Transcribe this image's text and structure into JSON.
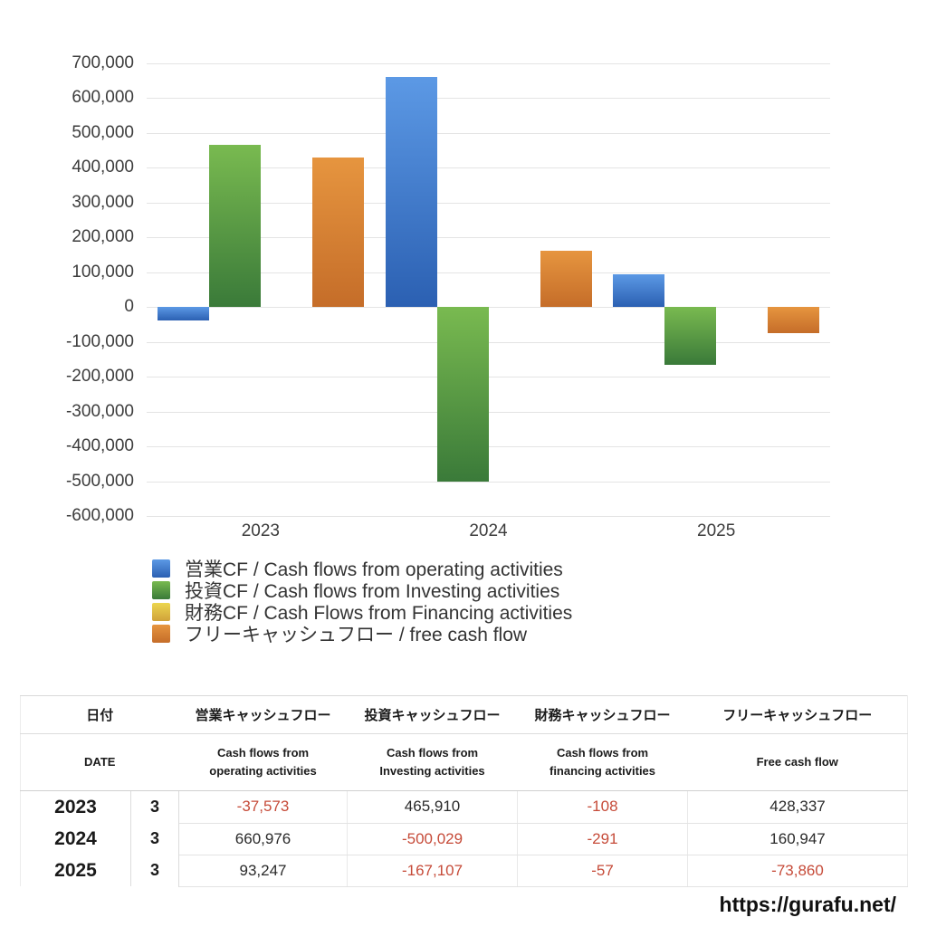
{
  "chart_data": {
    "type": "bar",
    "title": "",
    "categories": [
      "2023",
      "2024",
      "2025"
    ],
    "series": [
      {
        "name": "営業CF / Cash flows from operating activities",
        "values": [
          -37573,
          660976,
          93247
        ],
        "color_top": "#5c99e5",
        "color_bottom": "#2b60b2"
      },
      {
        "name": "投資CF / Cash flows from Investing activities",
        "values": [
          465910,
          -500029,
          -167107
        ],
        "color_top": "#79ba50",
        "color_bottom": "#3a7a39"
      },
      {
        "name": "財務CF / Cash Flows from Financing activities",
        "values": [
          -108,
          -291,
          -57
        ],
        "color_top": "#ecd64f",
        "color_bottom": "#d0a23a"
      },
      {
        "name": "フリーキャッシュフロー / free cash flow",
        "values": [
          428337,
          160947,
          -73860
        ],
        "color_top": "#e6953f",
        "color_bottom": "#c56d29"
      }
    ],
    "ylim": [
      -600000,
      700000
    ],
    "ytick_step": 100000,
    "grid": true,
    "legend_position": "bottom-left",
    "gridline_color": "#e4e4e4",
    "axis_label_color": "#3c3c3c"
  },
  "table": {
    "date_header_jp": "日付",
    "date_header_en": "DATE",
    "columns": [
      {
        "jp": "営業キャッシュフロー",
        "en": "Cash flows from\noperating activities"
      },
      {
        "jp": "投資キャッシュフロー",
        "en": "Cash flows from\nInvesting activities"
      },
      {
        "jp": "財務キャッシュフロー",
        "en": "Cash flows from\nfinancing activities"
      },
      {
        "jp": "フリーキャッシュフロー",
        "en": "Free cash flow"
      }
    ],
    "rows": [
      {
        "year": "2023",
        "month": "3",
        "values": [
          -37573,
          465910,
          -108,
          428337
        ]
      },
      {
        "year": "2024",
        "month": "3",
        "values": [
          660976,
          -500029,
          -291,
          160947
        ]
      },
      {
        "year": "2025",
        "month": "3",
        "values": [
          93247,
          -167107,
          -57,
          -73860
        ]
      }
    ],
    "negative_color": "#c64b39",
    "positive_color": "#2a2a2a"
  },
  "footer": {
    "url": "https://gurafu.net/"
  }
}
